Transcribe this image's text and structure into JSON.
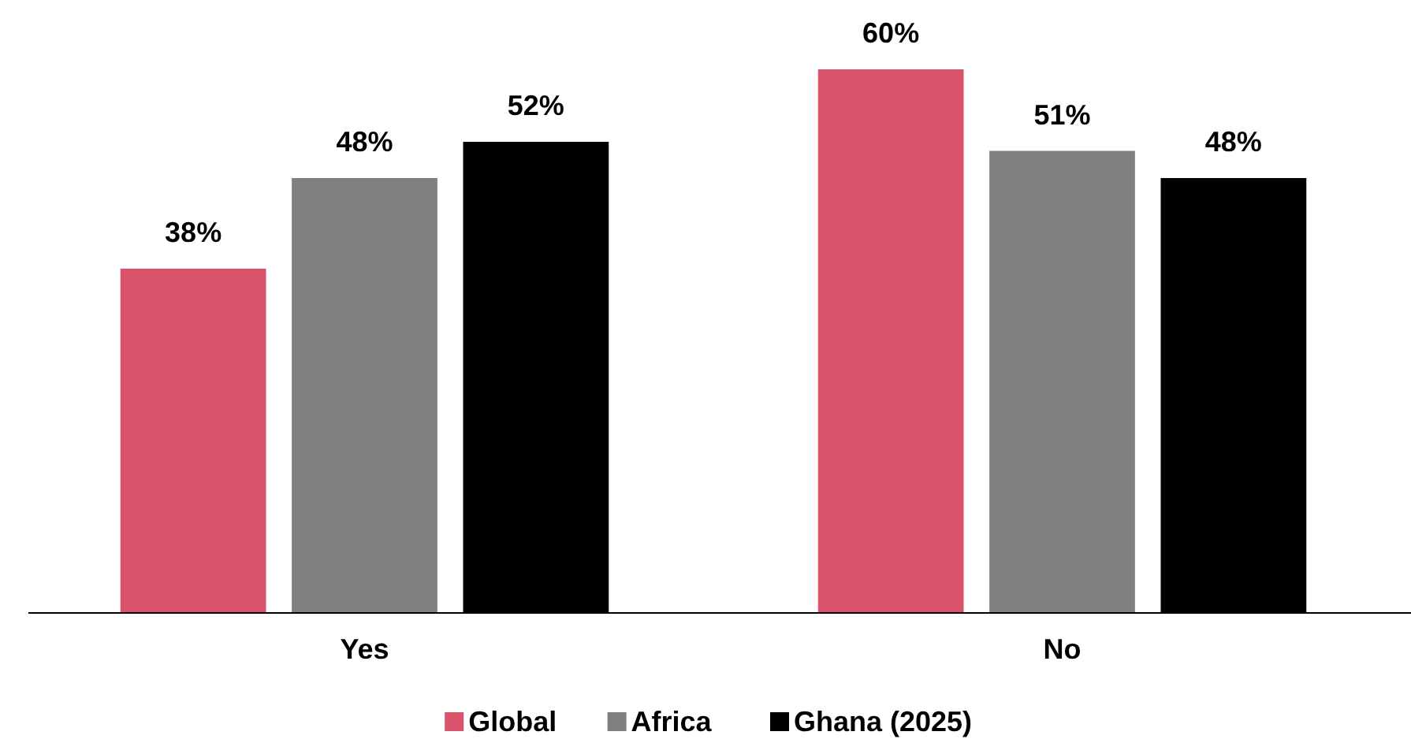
{
  "chart_data": {
    "type": "bar",
    "categories": [
      "Yes",
      "No"
    ],
    "legend": "bottom",
    "series": [
      {
        "name": "Global",
        "color": "#d9536b",
        "values": [
          38,
          60
        ],
        "value_labels": [
          "38%",
          "60%"
        ]
      },
      {
        "name": "Africa",
        "color": "#808080",
        "values": [
          48,
          51
        ],
        "value_labels": [
          "48%",
          "51%"
        ]
      },
      {
        "name": "Ghana (2025)",
        "color": "#000000",
        "values": [
          52,
          48
        ],
        "value_labels": [
          "52%",
          "48%"
        ]
      }
    ]
  }
}
